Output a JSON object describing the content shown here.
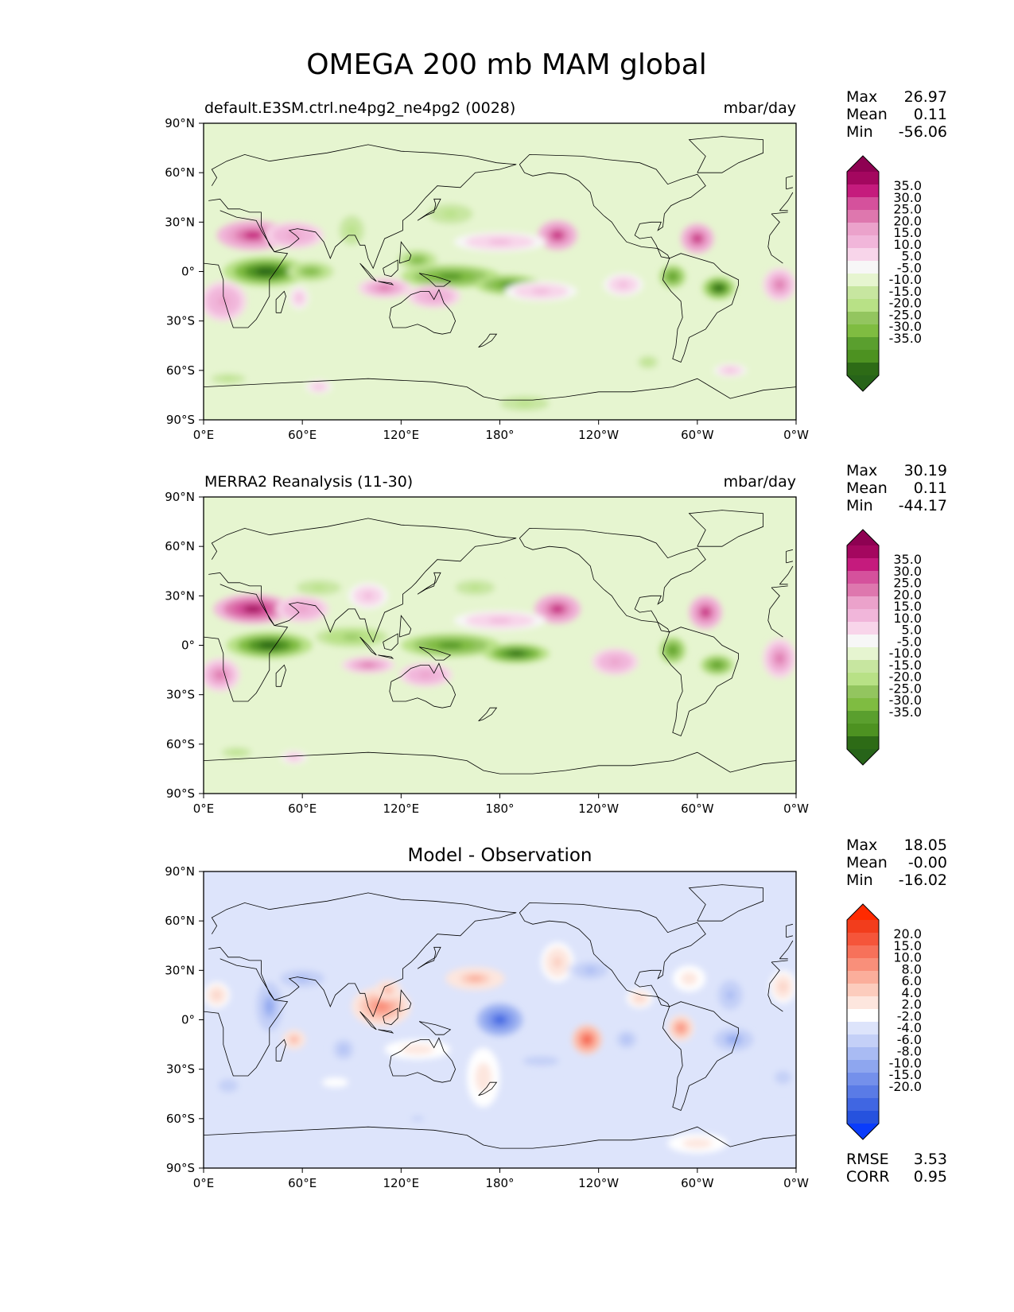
{
  "figure": {
    "title": "OMEGA 200 mb MAM global"
  },
  "chart_data": [
    {
      "type": "heatmap",
      "panel": "test",
      "left_title": "default.E3SM.ctrl.ne4pg2_ne4pg2 (0028)",
      "center_title": "",
      "units": "mbar/day",
      "stats": [
        {
          "label": "Max",
          "value": "26.97"
        },
        {
          "label": "Mean",
          "value": "0.11"
        },
        {
          "label": "Min",
          "value": "-56.06"
        }
      ],
      "xticks": [
        "0°E",
        "60°E",
        "120°E",
        "180°",
        "120°W",
        "60°W",
        "0°W"
      ],
      "yticks": [
        "90°N",
        "60°N",
        "30°N",
        "0°",
        "30°S",
        "60°S",
        "90°S"
      ],
      "xlim": [
        0,
        360
      ],
      "ylim": [
        -90,
        90
      ],
      "colorbar": {
        "labels": [
          "35.0",
          "30.0",
          "25.0",
          "20.0",
          "15.0",
          "10.0",
          "5.0",
          "-5.0",
          "-10.0",
          "-15.0",
          "-20.0",
          "-25.0",
          "-30.0",
          "-35.0"
        ],
        "colors": [
          "#8e0152",
          "#a4075f",
          "#c51b7d",
          "#d5519c",
          "#de77ae",
          "#eba2cb",
          "#f1b6da",
          "#f8d5ea",
          "#f7f7f7",
          "#e6f5d0",
          "#c7e6a0",
          "#b8e186",
          "#93c55f",
          "#7fbc41",
          "#5a9f2e",
          "#4d9221",
          "#2d6b16",
          "#276419"
        ],
        "extend": "both"
      },
      "features": [
        {
          "lon": 30,
          "lat": 22,
          "level": 25,
          "rx": 22,
          "ry": 9
        },
        {
          "lon": 55,
          "lat": 22,
          "level": 15,
          "rx": 18,
          "ry": 8
        },
        {
          "lon": 12,
          "lat": -18,
          "level": 15,
          "rx": 14,
          "ry": 12
        },
        {
          "lon": 38,
          "lat": 0,
          "level": -35,
          "rx": 26,
          "ry": 9
        },
        {
          "lon": 65,
          "lat": 0,
          "level": -20,
          "rx": 14,
          "ry": 6
        },
        {
          "lon": 150,
          "lat": -3,
          "level": -25,
          "rx": 30,
          "ry": 7
        },
        {
          "lon": 185,
          "lat": -8,
          "level": -25,
          "rx": 20,
          "ry": 6
        },
        {
          "lon": 130,
          "lat": 7,
          "level": -20,
          "rx": 12,
          "ry": 6
        },
        {
          "lon": 110,
          "lat": -10,
          "level": 20,
          "rx": 16,
          "ry": 6
        },
        {
          "lon": 140,
          "lat": -15,
          "level": 15,
          "rx": 16,
          "ry": 7
        },
        {
          "lon": 215,
          "lat": 22,
          "level": 25,
          "rx": 12,
          "ry": 9
        },
        {
          "lon": 180,
          "lat": 18,
          "level": 10,
          "rx": 28,
          "ry": 6
        },
        {
          "lon": 205,
          "lat": -12,
          "level": 10,
          "rx": 22,
          "ry": 6
        },
        {
          "lon": 300,
          "lat": 20,
          "level": 25,
          "rx": 10,
          "ry": 9
        },
        {
          "lon": 350,
          "lat": -8,
          "level": 20,
          "rx": 10,
          "ry": 10
        },
        {
          "lon": 285,
          "lat": -3,
          "level": -25,
          "rx": 8,
          "ry": 7
        },
        {
          "lon": 313,
          "lat": -10,
          "level": -35,
          "rx": 10,
          "ry": 7
        },
        {
          "lon": 255,
          "lat": -8,
          "level": 10,
          "rx": 12,
          "ry": 7
        },
        {
          "lon": 150,
          "lat": 35,
          "level": -10,
          "rx": 18,
          "ry": 8
        },
        {
          "lon": 90,
          "lat": 25,
          "level": -10,
          "rx": 10,
          "ry": 12
        },
        {
          "lon": 15,
          "lat": -65,
          "level": -10,
          "rx": 14,
          "ry": 4
        },
        {
          "lon": 195,
          "lat": -80,
          "level": -10,
          "rx": 20,
          "ry": 6
        },
        {
          "lon": 270,
          "lat": -55,
          "level": -10,
          "rx": 8,
          "ry": 5
        },
        {
          "lon": 58,
          "lat": -16,
          "level": 10,
          "rx": 6,
          "ry": 7
        },
        {
          "lon": 320,
          "lat": -60,
          "level": 10,
          "rx": 10,
          "ry": 4
        },
        {
          "lon": 70,
          "lat": -70,
          "level": 10,
          "rx": 8,
          "ry": 4
        }
      ]
    },
    {
      "type": "heatmap",
      "panel": "reference",
      "left_title": "MERRA2 Reanalysis (11-30)",
      "center_title": "",
      "units": "mbar/day",
      "stats": [
        {
          "label": "Max",
          "value": "30.19"
        },
        {
          "label": "Mean",
          "value": "0.11"
        },
        {
          "label": "Min",
          "value": "-44.17"
        }
      ],
      "xticks": [
        "0°E",
        "60°E",
        "120°E",
        "180°",
        "120°W",
        "60°W",
        "0°W"
      ],
      "yticks": [
        "90°N",
        "60°N",
        "30°N",
        "0°",
        "30°S",
        "60°S",
        "90°S"
      ],
      "xlim": [
        0,
        360
      ],
      "ylim": [
        -90,
        90
      ],
      "colorbar": {
        "labels": [
          "35.0",
          "30.0",
          "25.0",
          "20.0",
          "15.0",
          "10.0",
          "5.0",
          "-5.0",
          "-10.0",
          "-15.0",
          "-20.0",
          "-25.0",
          "-30.0",
          "-35.0"
        ],
        "colors": [
          "#8e0152",
          "#a4075f",
          "#c51b7d",
          "#d5519c",
          "#de77ae",
          "#eba2cb",
          "#f1b6da",
          "#f8d5ea",
          "#f7f7f7",
          "#e6f5d0",
          "#c7e6a0",
          "#b8e186",
          "#93c55f",
          "#7fbc41",
          "#5a9f2e",
          "#4d9221",
          "#2d6b16",
          "#276419"
        ],
        "extend": "both"
      },
      "features": [
        {
          "lon": 30,
          "lat": 22,
          "level": 30,
          "rx": 24,
          "ry": 9
        },
        {
          "lon": 60,
          "lat": 22,
          "level": 15,
          "rx": 16,
          "ry": 8
        },
        {
          "lon": 10,
          "lat": -18,
          "level": 20,
          "rx": 12,
          "ry": 10
        },
        {
          "lon": 40,
          "lat": 0,
          "level": -35,
          "rx": 26,
          "ry": 8
        },
        {
          "lon": 90,
          "lat": 5,
          "level": -15,
          "rx": 22,
          "ry": 6
        },
        {
          "lon": 150,
          "lat": 0,
          "level": -25,
          "rx": 30,
          "ry": 7
        },
        {
          "lon": 190,
          "lat": -5,
          "level": -30,
          "rx": 20,
          "ry": 6
        },
        {
          "lon": 100,
          "lat": -12,
          "level": 20,
          "rx": 16,
          "ry": 5
        },
        {
          "lon": 135,
          "lat": -18,
          "level": 15,
          "rx": 16,
          "ry": 7
        },
        {
          "lon": 215,
          "lat": 22,
          "level": 25,
          "rx": 14,
          "ry": 9
        },
        {
          "lon": 180,
          "lat": 15,
          "level": 10,
          "rx": 28,
          "ry": 6
        },
        {
          "lon": 250,
          "lat": -10,
          "level": 15,
          "rx": 14,
          "ry": 8
        },
        {
          "lon": 305,
          "lat": 20,
          "level": 25,
          "rx": 10,
          "ry": 10
        },
        {
          "lon": 350,
          "lat": -8,
          "level": 20,
          "rx": 10,
          "ry": 12
        },
        {
          "lon": 285,
          "lat": -3,
          "level": -25,
          "rx": 8,
          "ry": 8
        },
        {
          "lon": 312,
          "lat": -12,
          "level": -25,
          "rx": 10,
          "ry": 6
        },
        {
          "lon": 165,
          "lat": 35,
          "level": -10,
          "rx": 16,
          "ry": 6
        },
        {
          "lon": 70,
          "lat": 35,
          "level": -10,
          "rx": 18,
          "ry": 6
        },
        {
          "lon": 20,
          "lat": -65,
          "level": -10,
          "rx": 12,
          "ry": 4
        },
        {
          "lon": 55,
          "lat": -68,
          "level": 10,
          "rx": 8,
          "ry": 4
        },
        {
          "lon": 100,
          "lat": 30,
          "level": 10,
          "rx": 12,
          "ry": 8
        }
      ]
    },
    {
      "type": "heatmap",
      "panel": "difference",
      "left_title": "",
      "center_title": "Model - Observation",
      "units": "",
      "stats": [
        {
          "label": "Max",
          "value": "18.05"
        },
        {
          "label": "Mean",
          "value": "-0.00"
        },
        {
          "label": "Min",
          "value": "-16.02"
        }
      ],
      "bottom_stats": [
        {
          "label": "RMSE",
          "value": "3.53"
        },
        {
          "label": "CORR",
          "value": "0.95"
        }
      ],
      "xticks": [
        "0°E",
        "60°E",
        "120°E",
        "180°",
        "120°W",
        "60°W",
        "0°W"
      ],
      "yticks": [
        "90°N",
        "60°N",
        "30°N",
        "0°",
        "30°S",
        "60°S",
        "90°S"
      ],
      "xlim": [
        0,
        360
      ],
      "ylim": [
        -90,
        90
      ],
      "colorbar": {
        "labels": [
          "20.0",
          "15.0",
          "10.0",
          "8.0",
          "6.0",
          "4.0",
          "2.0",
          "-2.0",
          "-4.0",
          "-6.0",
          "-8.0",
          "-10.0",
          "-15.0",
          "-20.0"
        ],
        "colors": [
          "#ff2a00",
          "#f23d1c",
          "#f5553a",
          "#f7715a",
          "#f98f7a",
          "#fbae9b",
          "#fcccbd",
          "#fde6de",
          "#ffffff",
          "#dde4fb",
          "#c4d0f7",
          "#a9bbf3",
          "#8ea6ef",
          "#7490eb",
          "#5a7be6",
          "#4066e2",
          "#2652de",
          "#0a3cfb"
        ],
        "extend": "both"
      },
      "features": [
        {
          "lon": 8,
          "lat": 15,
          "level": 6,
          "rx": 8,
          "ry": 8
        },
        {
          "lon": 40,
          "lat": 8,
          "level": -8,
          "rx": 8,
          "ry": 15
        },
        {
          "lon": 60,
          "lat": 25,
          "level": -6,
          "rx": 18,
          "ry": 7
        },
        {
          "lon": 55,
          "lat": -12,
          "level": 8,
          "rx": 7,
          "ry": 6
        },
        {
          "lon": 85,
          "lat": -18,
          "level": -6,
          "rx": 8,
          "ry": 8
        },
        {
          "lon": 108,
          "lat": 8,
          "level": 10,
          "rx": 18,
          "ry": 12
        },
        {
          "lon": 112,
          "lat": 18,
          "level": 8,
          "rx": 8,
          "ry": 6
        },
        {
          "lon": 130,
          "lat": -18,
          "level": 4,
          "rx": 20,
          "ry": 6
        },
        {
          "lon": 165,
          "lat": 25,
          "level": 8,
          "rx": 18,
          "ry": 7
        },
        {
          "lon": 180,
          "lat": 0,
          "level": -15,
          "rx": 14,
          "ry": 10
        },
        {
          "lon": 170,
          "lat": -35,
          "level": 4,
          "rx": 10,
          "ry": 18
        },
        {
          "lon": 215,
          "lat": 35,
          "level": 6,
          "rx": 10,
          "ry": 12
        },
        {
          "lon": 235,
          "lat": 30,
          "level": -6,
          "rx": 14,
          "ry": 7
        },
        {
          "lon": 233,
          "lat": -12,
          "level": 15,
          "rx": 9,
          "ry": 9
        },
        {
          "lon": 257,
          "lat": -12,
          "level": -6,
          "rx": 8,
          "ry": 7
        },
        {
          "lon": 265,
          "lat": 13,
          "level": 6,
          "rx": 8,
          "ry": 6
        },
        {
          "lon": 290,
          "lat": -5,
          "level": 10,
          "rx": 8,
          "ry": 8
        },
        {
          "lon": 295,
          "lat": 25,
          "level": 4,
          "rx": 10,
          "ry": 8
        },
        {
          "lon": 320,
          "lat": 15,
          "level": -6,
          "rx": 10,
          "ry": 12
        },
        {
          "lon": 322,
          "lat": -12,
          "level": -8,
          "rx": 12,
          "ry": 7
        },
        {
          "lon": 352,
          "lat": 20,
          "level": 6,
          "rx": 8,
          "ry": 10
        },
        {
          "lon": 352,
          "lat": -35,
          "level": -4,
          "rx": 10,
          "ry": 8
        },
        {
          "lon": 300,
          "lat": -75,
          "level": 4,
          "rx": 18,
          "ry": 6
        },
        {
          "lon": 205,
          "lat": -25,
          "level": -4,
          "rx": 22,
          "ry": 6
        },
        {
          "lon": 15,
          "lat": -40,
          "level": -4,
          "rx": 12,
          "ry": 8
        },
        {
          "lon": 80,
          "lat": -38,
          "level": 2,
          "rx": 8,
          "ry": 3
        },
        {
          "lon": 130,
          "lat": -60,
          "level": -4,
          "rx": 8,
          "ry": 3
        }
      ]
    }
  ]
}
